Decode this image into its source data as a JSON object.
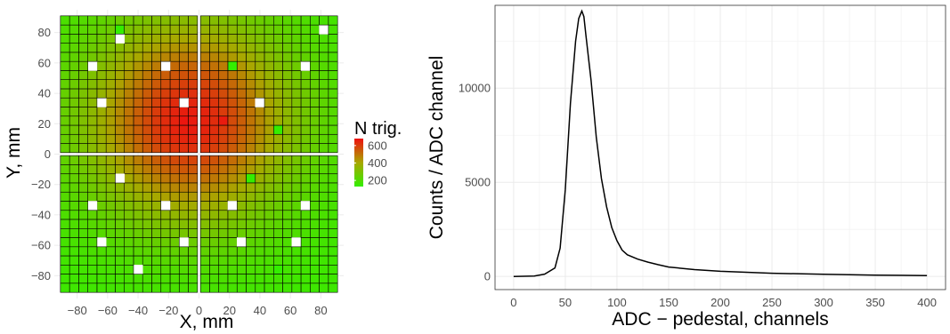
{
  "colors": {
    "low": "#33ee00",
    "mid": "#a8a800",
    "high": "#ee1010",
    "grid": "#ebebeb",
    "cell_border": "#000000",
    "curve": "#000000"
  },
  "chart_data": [
    {
      "type": "heatmap",
      "title": "",
      "xlabel": "X, mm",
      "ylabel": "Y, mm",
      "xlim": [
        -95,
        95
      ],
      "ylim": [
        -95,
        95
      ],
      "xticks": [
        -80,
        -60,
        -40,
        -20,
        0,
        20,
        40,
        60,
        80
      ],
      "yticks": [
        -80,
        -60,
        -40,
        -20,
        0,
        20,
        40,
        60,
        80
      ],
      "grid": true,
      "cell_pitch_mm": 6,
      "quadrant_gap_mm": 1,
      "cells_per_quadrant_side": 15,
      "colorbar": {
        "title": "N trig.",
        "ticks": [
          200,
          400,
          600
        ],
        "min": 130,
        "max": 680
      },
      "peak": {
        "x": -6,
        "y": 22,
        "value": 660,
        "sigma": 46,
        "floor": 150
      },
      "bright_cells": [
        {
          "x": -12.5,
          "y": 20.5,
          "value": 670
        },
        {
          "x": 15.5,
          "y": 20.5,
          "value": 660
        }
      ],
      "missing_cells": [
        [
          -50.5,
          76.5
        ],
        [
          -70.5,
          59.5
        ],
        [
          -24.5,
          59.5
        ],
        [
          70.5,
          59.5
        ],
        [
          84.5,
          82.5
        ],
        [
          -66.5,
          31.5
        ],
        [
          -10.5,
          31.5
        ],
        [
          42.5,
          31.5
        ],
        [
          -50.5,
          -13.5
        ],
        [
          -24.5,
          -31.5
        ],
        [
          20.5,
          -31.5
        ],
        [
          -70.5,
          -31.5
        ],
        [
          70.5,
          -31.5
        ],
        [
          -66.5,
          -58.5
        ],
        [
          -10.5,
          -58.5
        ],
        [
          26.5,
          -58.5
        ],
        [
          64.5,
          -58.5
        ],
        [
          -40.5,
          -76.5
        ]
      ],
      "green_cells": [
        [
          -50.5,
          82.5
        ],
        [
          20.5,
          59.5
        ],
        [
          92.5,
          82.5
        ],
        [
          52.5,
          -76.5
        ],
        [
          35.5,
          -13.5
        ],
        [
          52.5,
          15.5
        ]
      ]
    },
    {
      "type": "line",
      "title": "",
      "xlabel": "ADC − pedestal, channels",
      "ylabel": "Counts / ADC channel",
      "xlim": [
        -18,
        418
      ],
      "ylim": [
        -700,
        14400
      ],
      "xticks": [
        0,
        50,
        100,
        150,
        200,
        250,
        300,
        350,
        400
      ],
      "yticks": [
        0,
        5000,
        10000
      ],
      "grid": true,
      "series": [
        {
          "x": [
            0,
            20,
            30,
            40,
            45,
            50,
            55,
            60,
            63,
            66,
            68,
            70,
            75,
            80,
            85,
            90,
            95,
            100,
            105,
            110,
            120,
            130,
            140,
            150,
            175,
            200,
            250,
            300,
            350,
            400
          ],
          "values": [
            0,
            20,
            120,
            450,
            1500,
            4600,
            9200,
            12500,
            13700,
            14100,
            13800,
            12800,
            10400,
            7400,
            5200,
            3700,
            2600,
            1900,
            1400,
            1150,
            920,
            760,
            620,
            500,
            360,
            270,
            170,
            110,
            70,
            40
          ]
        }
      ]
    }
  ]
}
